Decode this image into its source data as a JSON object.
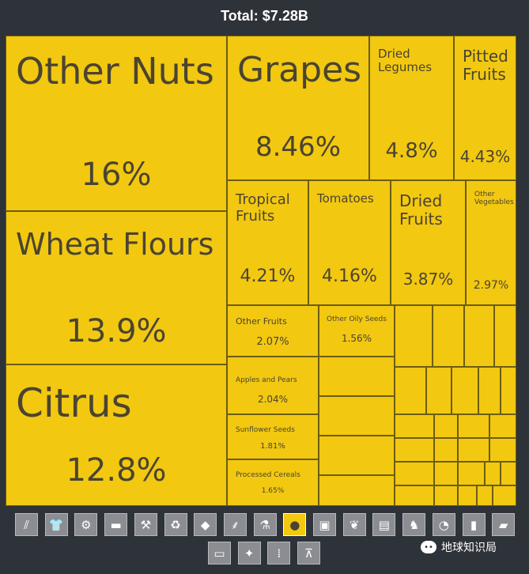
{
  "title": "Total: $7.28B",
  "chart_data": {
    "type": "treemap",
    "total_label": "Total: $7.28B",
    "color": "#f2c811",
    "items": [
      {
        "name": "Other Nuts",
        "share": "16%"
      },
      {
        "name": "Wheat Flours",
        "share": "13.9%"
      },
      {
        "name": "Citrus",
        "share": "12.8%"
      },
      {
        "name": "Grapes",
        "share": "8.46%"
      },
      {
        "name": "Dried Legumes",
        "share": "4.8%"
      },
      {
        "name": "Pitted Fruits",
        "share": "4.43%"
      },
      {
        "name": "Tropical Fruits",
        "share": "4.21%"
      },
      {
        "name": "Tomatoes",
        "share": "4.16%"
      },
      {
        "name": "Dried Fruits",
        "share": "3.87%"
      },
      {
        "name": "Other Vegetables",
        "share": "2.97%"
      },
      {
        "name": "Other Fruits",
        "share": "2.07%"
      },
      {
        "name": "Other Oily Seeds",
        "share": "1.56%"
      },
      {
        "name": "Apples and Pears",
        "share": "2.04%"
      },
      {
        "name": "Sunflower Seeds",
        "share": "1.81%"
      },
      {
        "name": "Processed Cereals",
        "share": "1.65%"
      }
    ]
  },
  "icon_bar": {
    "selected": "fruit-icon",
    "icons": [
      "road-icon",
      "shirt-icon",
      "gear-icon",
      "anvil-icon",
      "pickaxe-icon",
      "recycle-icon",
      "diamond-icon",
      "wheat-icon",
      "flask-icon",
      "fruit-icon",
      "box-icon",
      "leaf-icon",
      "document-icon",
      "animal-icon",
      "gauge-icon",
      "battery-icon",
      "shoe-icon",
      "ruler-icon",
      "hide-icon",
      "bullets-icon",
      "easel-icon"
    ]
  },
  "watermark": "地球知识局"
}
